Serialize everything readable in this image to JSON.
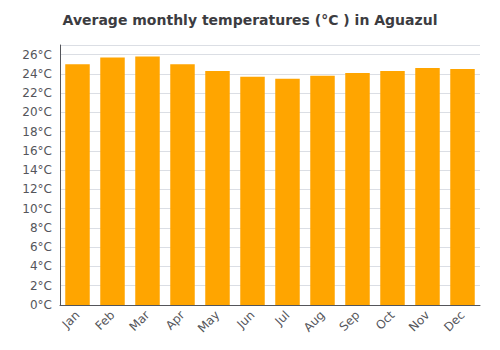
{
  "chart_data": {
    "type": "bar",
    "title": "Average monthly temperatures (°C ) in Aguazul",
    "categories": [
      "Jan",
      "Feb",
      "Mar",
      "Apr",
      "May",
      "Jun",
      "Jul",
      "Aug",
      "Sep",
      "Oct",
      "Nov",
      "Dec"
    ],
    "values": [
      25.0,
      25.7,
      25.8,
      25.0,
      24.3,
      23.7,
      23.5,
      23.8,
      24.1,
      24.3,
      24.6,
      24.5
    ],
    "color": "#FFA500",
    "ylim": [
      0,
      27
    ],
    "yticks": [
      {
        "value": 0,
        "label": "0°C"
      },
      {
        "value": 2,
        "label": "2°C"
      },
      {
        "value": 4,
        "label": "4°C"
      },
      {
        "value": 6,
        "label": "6°C"
      },
      {
        "value": 8,
        "label": "8°C"
      },
      {
        "value": 10,
        "label": "10°C"
      },
      {
        "value": 12,
        "label": "12°C"
      },
      {
        "value": 14,
        "label": "14°C"
      },
      {
        "value": 16,
        "label": "16°C"
      },
      {
        "value": 18,
        "label": "18°C"
      },
      {
        "value": 20,
        "label": "20°C"
      },
      {
        "value": 22,
        "label": "22°C"
      },
      {
        "value": 24,
        "label": "24°C"
      },
      {
        "value": 26,
        "label": "26°C"
      }
    ],
    "grid": true
  }
}
